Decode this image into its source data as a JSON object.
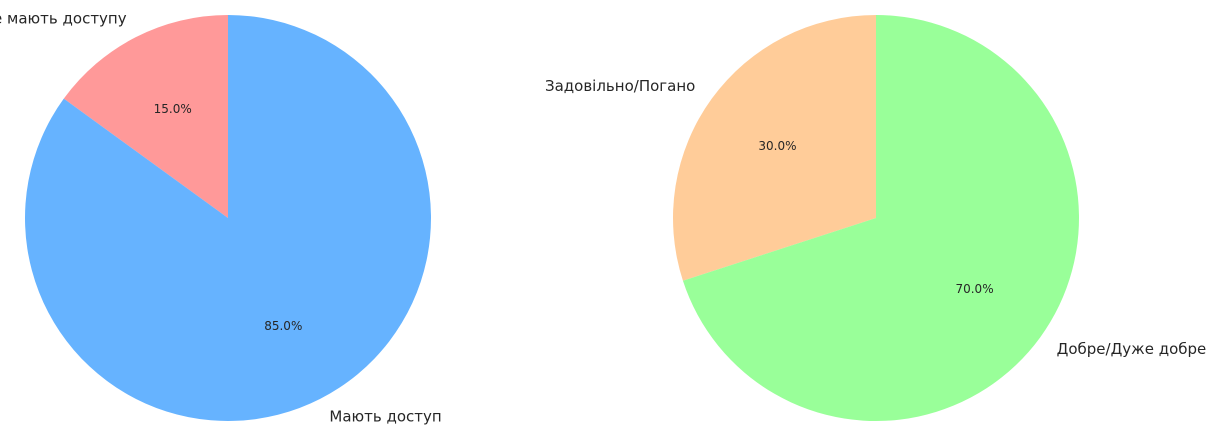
{
  "chart_data": [
    {
      "type": "pie",
      "categories": [
        "Не мають доступу",
        "Мають доступ"
      ],
      "values": [
        15.0,
        85.0
      ],
      "percent_labels": [
        "15.0%",
        "85.0%"
      ],
      "colors": [
        "#ff9999",
        "#66b3ff"
      ],
      "start_angle": "top, counter-clockwise",
      "title": ""
    },
    {
      "type": "pie",
      "categories": [
        "Задовільно/Погано",
        "Добре/Дуже добре"
      ],
      "values": [
        30.0,
        70.0
      ],
      "percent_labels": [
        "30.0%",
        "70.0%"
      ],
      "colors": [
        "#ffcc99",
        "#99ff99"
      ],
      "start_angle": "top, counter-clockwise",
      "title": ""
    }
  ]
}
